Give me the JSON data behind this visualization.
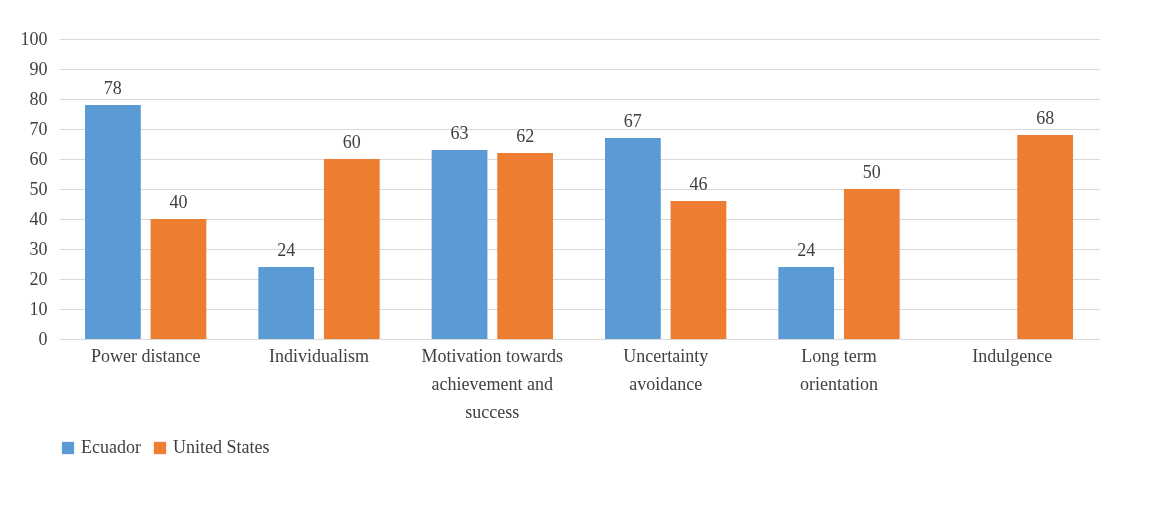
{
  "chart_data": {
    "type": "bar",
    "categories": [
      "Power distance",
      "Individualism",
      "Motivation towards achievement and success",
      "Uncertainty avoidance",
      "Long term orientation",
      "Indulgence"
    ],
    "series": [
      {
        "name": "Ecuador",
        "color": "#5b9bd5",
        "values": [
          78,
          24,
          63,
          67,
          24,
          null
        ]
      },
      {
        "name": "United States",
        "color": "#ed7d31",
        "values": [
          40,
          60,
          62,
          46,
          50,
          68
        ]
      }
    ],
    "ylim": [
      0,
      100
    ],
    "yticks": [
      0,
      10,
      20,
      30,
      40,
      50,
      60,
      70,
      80,
      90,
      100
    ],
    "grid": "y",
    "legend": "bottom",
    "data_labels": true
  }
}
